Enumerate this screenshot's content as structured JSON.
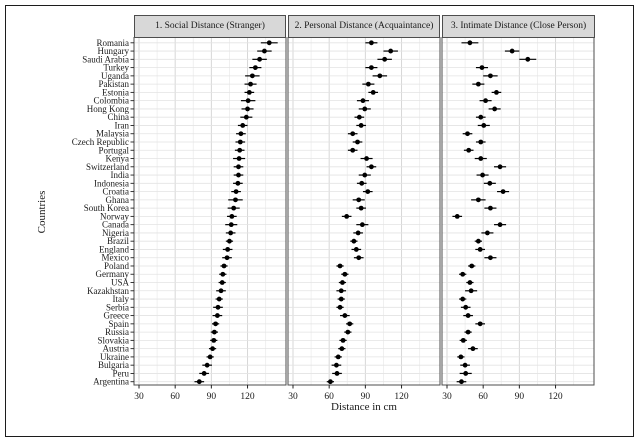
{
  "figure": {
    "xlabel": "Distance in cm",
    "ylabel": "Countries",
    "panel_titles": [
      "1. Social Distance (Stranger)",
      "2. Personal Distance (Acquaintance)",
      "3. Intimate Distance (Close Person)"
    ]
  },
  "chart_data": {
    "type": "scatter",
    "subtype": "dot-plot-with-error-bars",
    "title": "",
    "xlabel": "Distance in cm",
    "ylabel": "Countries",
    "x_ticks": [
      30,
      60,
      90,
      120
    ],
    "xlim": [
      26,
      152
    ],
    "grid": true,
    "legend_position": "none",
    "point_color": "#000000",
    "panel_header_bg": "#d8d8d8",
    "categories": [
      "Romania",
      "Hungary",
      "Saudi Arabia",
      "Turkey",
      "Uganda",
      "Pakistan",
      "Estonia",
      "Colombia",
      "Hong Kong",
      "China",
      "Iran",
      "Malaysia",
      "Czech Republic",
      "Portugal",
      "Kenya",
      "Switzerland",
      "India",
      "Indonesia",
      "Croatia",
      "Ghana",
      "South Korea",
      "Norway",
      "Canada",
      "Nigeria",
      "Brazil",
      "England",
      "Mexico",
      "Poland",
      "Germany",
      "USA",
      "Kazakhstan",
      "Italy",
      "Serbia",
      "Greece",
      "Spain",
      "Russia",
      "Slovakia",
      "Austria",
      "Ukraine",
      "Bulgaria",
      "Peru",
      "Argentina"
    ],
    "series": [
      {
        "name": "1. Social Distance (Stranger)",
        "values": [
          138,
          134,
          130,
          126.5,
          124,
          122.5,
          121.5,
          120.5,
          120,
          119,
          116,
          114.5,
          114,
          113.5,
          113,
          112.5,
          112.5,
          112,
          110.5,
          110,
          108.5,
          107,
          106.5,
          106,
          105,
          103.5,
          103,
          100.5,
          99.5,
          99,
          98,
          96.5,
          95.5,
          95,
          93.5,
          92.5,
          92,
          91,
          89,
          86.5,
          84,
          80
        ],
        "err": [
          7,
          6,
          6,
          5,
          6,
          5,
          4,
          6,
          5,
          5,
          4,
          4,
          4,
          4,
          5,
          4,
          4,
          4,
          4,
          6,
          5,
          4,
          5,
          4,
          3,
          4,
          4,
          3,
          3,
          3,
          4,
          3,
          4,
          4,
          3,
          3,
          3,
          3,
          3,
          4,
          4,
          4
        ]
      },
      {
        "name": "2. Personal Distance (Acquaintance)",
        "values": [
          95,
          111,
          106,
          95,
          102,
          92.5,
          96.5,
          88,
          89.5,
          85,
          86.5,
          79.5,
          83.5,
          79.5,
          91,
          95,
          89.5,
          87,
          92,
          84.5,
          86.5,
          74.5,
          87.5,
          84,
          80.5,
          82.5,
          84.5,
          69,
          73,
          71,
          70,
          70,
          69,
          73,
          77,
          75.5,
          71.5,
          70.5,
          67.5,
          66,
          66.5,
          61
        ],
        "err": [
          5,
          6,
          6,
          5,
          6,
          5,
          4,
          5,
          5,
          4,
          4,
          4,
          4,
          4,
          5,
          4,
          5,
          4,
          4,
          5,
          4,
          4,
          5,
          4,
          3,
          4,
          4,
          3,
          3,
          3,
          4,
          3,
          3,
          4,
          3,
          3,
          3,
          3,
          3,
          4,
          4,
          3
        ]
      },
      {
        "name": "3. Intimate Distance (Close Person)",
        "values": [
          49,
          84,
          97,
          59,
          66,
          56,
          71,
          62,
          69.5,
          58,
          60.5,
          47,
          58,
          48,
          58,
          74,
          59.5,
          65.5,
          76.5,
          56,
          66,
          38.5,
          74,
          63.5,
          56,
          57.5,
          66,
          50.5,
          43,
          49,
          50,
          43,
          45.5,
          47.5,
          57.5,
          47.5,
          43.5,
          51.5,
          41.5,
          45,
          45.5,
          42
        ],
        "err": [
          7,
          6,
          7,
          5,
          6,
          5,
          4,
          5,
          5,
          4,
          5,
          4,
          4,
          4,
          5,
          5,
          5,
          5,
          5,
          6,
          5,
          4,
          5,
          5,
          3,
          4,
          5,
          3,
          3,
          3,
          5,
          3,
          4,
          4,
          4,
          3,
          3,
          4,
          3,
          4,
          5,
          4
        ]
      }
    ]
  }
}
